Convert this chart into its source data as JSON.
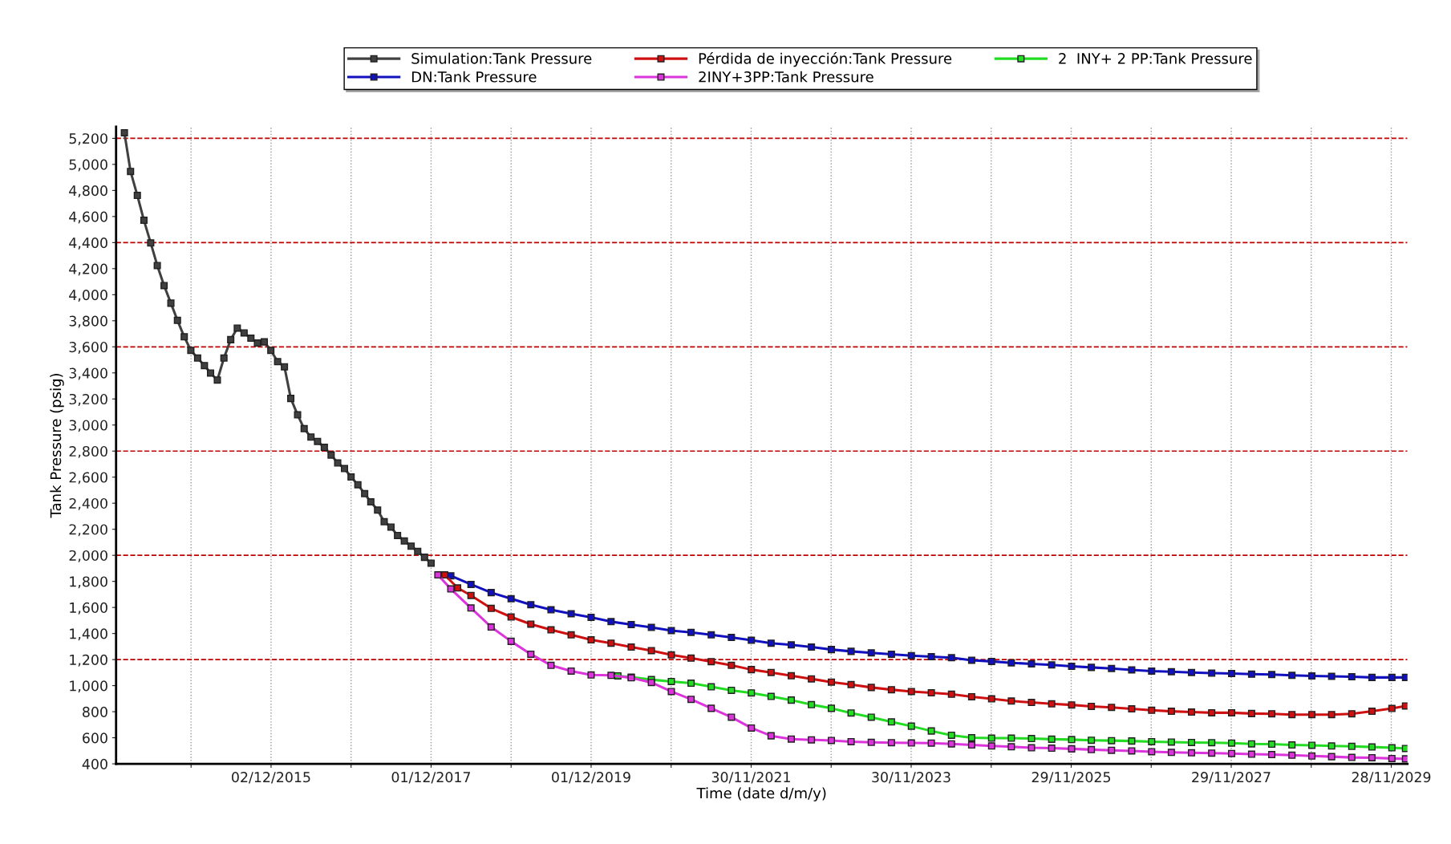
{
  "chart_data": {
    "type": "line",
    "xlabel": "Time (date d/m/y)",
    "ylabel": "Tank Pressure (psig)",
    "xlim": [
      "2013-12-25",
      "2030-02-10"
    ],
    "ylim": [
      400,
      5290
    ],
    "xticks": [
      {
        "value": "2014-12-02",
        "label": null
      },
      {
        "value": "2015-12-02",
        "label": "02/12/2015"
      },
      {
        "value": "2016-12-01",
        "label": null
      },
      {
        "value": "2017-12-01",
        "label": "01/12/2017"
      },
      {
        "value": "2018-12-01",
        "label": null
      },
      {
        "value": "2019-12-01",
        "label": "01/12/2019"
      },
      {
        "value": "2020-11-30",
        "label": null
      },
      {
        "value": "2021-11-30",
        "label": "30/11/2021"
      },
      {
        "value": "2022-11-30",
        "label": null
      },
      {
        "value": "2023-11-30",
        "label": "30/11/2023"
      },
      {
        "value": "2024-11-29",
        "label": null
      },
      {
        "value": "2025-11-29",
        "label": "29/11/2025"
      },
      {
        "value": "2026-11-29",
        "label": null
      },
      {
        "value": "2027-11-29",
        "label": "29/11/2027"
      },
      {
        "value": "2028-11-28",
        "label": null
      },
      {
        "value": "2029-11-28",
        "label": "28/11/2029"
      }
    ],
    "yticks": [
      {
        "value": 400,
        "label": "400"
      },
      {
        "value": 600,
        "label": "600"
      },
      {
        "value": 800,
        "label": "800"
      },
      {
        "value": 1000,
        "label": "1,000"
      },
      {
        "value": 1200,
        "label": "1,200"
      },
      {
        "value": 1400,
        "label": "1,400"
      },
      {
        "value": 1600,
        "label": "1,600"
      },
      {
        "value": 1800,
        "label": "1,800"
      },
      {
        "value": 2000,
        "label": "2,000"
      },
      {
        "value": 2200,
        "label": "2,200"
      },
      {
        "value": 2400,
        "label": "2,400"
      },
      {
        "value": 2600,
        "label": "2,600"
      },
      {
        "value": 2800,
        "label": "2,800"
      },
      {
        "value": 3000,
        "label": "3,000"
      },
      {
        "value": 3200,
        "label": "3,200"
      },
      {
        "value": 3400,
        "label": "3,400"
      },
      {
        "value": 3600,
        "label": "3,600"
      },
      {
        "value": 3800,
        "label": "3,800"
      },
      {
        "value": 4000,
        "label": "4,000"
      },
      {
        "value": 4200,
        "label": "4,200"
      },
      {
        "value": 4400,
        "label": "4,400"
      },
      {
        "value": 4600,
        "label": "4,600"
      },
      {
        "value": 4800,
        "label": "4,800"
      },
      {
        "value": 5000,
        "label": "5,000"
      },
      {
        "value": 5200,
        "label": "5,200"
      }
    ],
    "grid": "x",
    "legend": "top",
    "marker": "square",
    "line_style": "solid",
    "ref_lines": [
      {
        "axis": "y",
        "value": 1200,
        "color": "#c00000",
        "line_style": "dashed"
      },
      {
        "axis": "y",
        "value": 2000,
        "color": "#c00000",
        "line_style": "dashed"
      },
      {
        "axis": "y",
        "value": 2800,
        "color": "#c00000",
        "line_style": "dashed"
      },
      {
        "axis": "y",
        "value": 3600,
        "color": "#c00000",
        "line_style": "dashed"
      },
      {
        "axis": "y",
        "value": 4400,
        "color": "#c00000",
        "line_style": "dashed"
      },
      {
        "axis": "y",
        "value": 5200,
        "color": "#c00000",
        "line_style": "dashed"
      }
    ],
    "series": [
      {
        "name": "Simulation:Tank Pressure",
        "color": "#404040",
        "x": [
          "2014-02",
          "2014-03",
          "2014-04",
          "2014-05",
          "2014-06",
          "2014-07",
          "2014-08",
          "2014-09",
          "2014-10",
          "2014-11",
          "2014-12",
          "2015-01",
          "2015-02",
          "2015-03",
          "2015-04",
          "2015-05",
          "2015-06",
          "2015-07",
          "2015-08",
          "2015-09",
          "2015-10",
          "2015-11",
          "2015-12",
          "2016-01",
          "2016-02",
          "2016-03",
          "2016-04",
          "2016-05",
          "2016-06",
          "2016-07",
          "2016-08",
          "2016-09",
          "2016-10",
          "2016-11",
          "2016-12",
          "2017-01",
          "2017-02",
          "2017-03",
          "2017-04",
          "2017-05",
          "2017-06",
          "2017-07",
          "2017-08",
          "2017-09",
          "2017-10",
          "2017-11",
          "2017-12"
        ],
        "values": [
          5243,
          4946,
          4762,
          4571,
          4397,
          4224,
          4070,
          3935,
          3803,
          3677,
          3573,
          3514,
          3456,
          3399,
          3345,
          3514,
          3655,
          3744,
          3707,
          3666,
          3629,
          3638,
          3573,
          3486,
          3447,
          3204,
          3078,
          2972,
          2907,
          2874,
          2829,
          2770,
          2709,
          2666,
          2601,
          2542,
          2473,
          2410,
          2347,
          2258,
          2217,
          2152,
          2110,
          2070,
          2030,
          1985,
          1940
        ]
      },
      {
        "name": "DN:Tank Pressure",
        "color": "#1010c0",
        "x": [
          "2018-03",
          "2018-06",
          "2018-09",
          "2018-12",
          "2019-03",
          "2019-06",
          "2019-09",
          "2019-12",
          "2020-03",
          "2020-06",
          "2020-09",
          "2020-12",
          "2021-03",
          "2021-06",
          "2021-09",
          "2021-12",
          "2022-03",
          "2022-06",
          "2022-09",
          "2022-12",
          "2023-03",
          "2023-06",
          "2023-09",
          "2023-12",
          "2024-03",
          "2024-06",
          "2024-09",
          "2024-12",
          "2025-03",
          "2025-06",
          "2025-09",
          "2025-12",
          "2026-03",
          "2026-06",
          "2026-09",
          "2026-12",
          "2027-03",
          "2027-06",
          "2027-09",
          "2027-12",
          "2028-03",
          "2028-06",
          "2028-09",
          "2028-12",
          "2029-03",
          "2029-06",
          "2029-09",
          "2029-12",
          "2030-02"
        ],
        "values": [
          1843,
          1777,
          1714,
          1667,
          1621,
          1582,
          1552,
          1524,
          1491,
          1469,
          1447,
          1423,
          1409,
          1390,
          1370,
          1348,
          1326,
          1313,
          1296,
          1277,
          1263,
          1252,
          1241,
          1230,
          1222,
          1214,
          1195,
          1186,
          1175,
          1167,
          1159,
          1148,
          1140,
          1132,
          1121,
          1112,
          1107,
          1101,
          1096,
          1093,
          1088,
          1085,
          1079,
          1074,
          1071,
          1068,
          1063,
          1063,
          1063
        ]
      },
      {
        "name": "Pérdida de inyección:Tank Pressure",
        "color": "#d01010",
        "x": [
          "2018-02",
          "2018-04",
          "2018-06",
          "2018-09",
          "2018-12",
          "2019-03",
          "2019-06",
          "2019-09",
          "2019-12",
          "2020-03",
          "2020-06",
          "2020-09",
          "2020-12",
          "2021-03",
          "2021-06",
          "2021-09",
          "2021-12",
          "2022-03",
          "2022-06",
          "2022-09",
          "2022-12",
          "2023-03",
          "2023-06",
          "2023-09",
          "2023-12",
          "2024-03",
          "2024-06",
          "2024-09",
          "2024-12",
          "2025-03",
          "2025-06",
          "2025-09",
          "2025-12",
          "2026-03",
          "2026-06",
          "2026-09",
          "2026-12",
          "2027-03",
          "2027-06",
          "2027-09",
          "2027-12",
          "2028-03",
          "2028-06",
          "2028-09",
          "2028-12",
          "2029-03",
          "2029-06",
          "2029-09",
          "2029-12",
          "2030-02"
        ],
        "values": [
          1850,
          1750,
          1692,
          1593,
          1527,
          1472,
          1428,
          1390,
          1351,
          1326,
          1296,
          1269,
          1236,
          1211,
          1184,
          1156,
          1123,
          1101,
          1076,
          1052,
          1027,
          1008,
          986,
          969,
          955,
          945,
          934,
          915,
          899,
          882,
          871,
          860,
          852,
          841,
          833,
          822,
          811,
          803,
          797,
          792,
          792,
          786,
          784,
          778,
          778,
          778,
          784,
          803,
          825,
          844
        ]
      },
      {
        "name": "2INY+3PP:Tank Pressure",
        "color": "#dd33dd",
        "x": [
          "2018-01",
          "2018-03",
          "2018-06",
          "2018-09",
          "2018-12",
          "2019-03",
          "2019-06",
          "2019-09",
          "2019-12",
          "2020-03",
          "2020-06",
          "2020-09",
          "2020-12",
          "2021-03",
          "2021-06",
          "2021-09",
          "2021-12",
          "2022-03",
          "2022-06",
          "2022-09",
          "2022-12",
          "2023-03",
          "2023-06",
          "2023-09",
          "2023-12",
          "2024-03",
          "2024-06",
          "2024-09",
          "2024-12",
          "2025-03",
          "2025-06",
          "2025-09",
          "2025-12",
          "2026-03",
          "2026-06",
          "2026-09",
          "2026-12",
          "2027-03",
          "2027-06",
          "2027-09",
          "2027-12",
          "2028-03",
          "2028-06",
          "2028-09",
          "2028-12",
          "2029-03",
          "2029-06",
          "2029-09",
          "2029-12",
          "2030-02"
        ],
        "values": [
          1850,
          1742,
          1596,
          1450,
          1340,
          1241,
          1156,
          1112,
          1082,
          1079,
          1060,
          1024,
          955,
          895,
          826,
          758,
          675,
          615,
          590,
          584,
          579,
          570,
          565,
          562,
          560,
          559,
          553,
          545,
          537,
          531,
          523,
          520,
          515,
          509,
          504,
          499,
          493,
          488,
          485,
          482,
          479,
          474,
          471,
          466,
          460,
          455,
          449,
          447,
          441,
          438
        ]
      },
      {
        "name": "2  INY+ 2 PP:Tank Pressure",
        "color": "#22dd22",
        "x": [
          "2020-04",
          "2020-06",
          "2020-09",
          "2020-12",
          "2021-03",
          "2021-06",
          "2021-09",
          "2021-12",
          "2022-03",
          "2022-06",
          "2022-09",
          "2022-12",
          "2023-03",
          "2023-06",
          "2023-09",
          "2023-12",
          "2024-03",
          "2024-06",
          "2024-09",
          "2024-12",
          "2025-03",
          "2025-06",
          "2025-09",
          "2025-12",
          "2026-03",
          "2026-06",
          "2026-09",
          "2026-12",
          "2027-03",
          "2027-06",
          "2027-09",
          "2027-12",
          "2028-03",
          "2028-06",
          "2028-09",
          "2028-12",
          "2029-03",
          "2029-06",
          "2029-09",
          "2029-12",
          "2030-02"
        ],
        "values": [
          1075,
          1065,
          1046,
          1032,
          1019,
          991,
          964,
          944,
          917,
          889,
          854,
          826,
          790,
          758,
          722,
          689,
          652,
          619,
          600,
          597,
          597,
          594,
          589,
          586,
          581,
          578,
          575,
          570,
          567,
          564,
          562,
          559,
          553,
          551,
          545,
          542,
          537,
          534,
          529,
          523,
          518
        ]
      }
    ]
  }
}
